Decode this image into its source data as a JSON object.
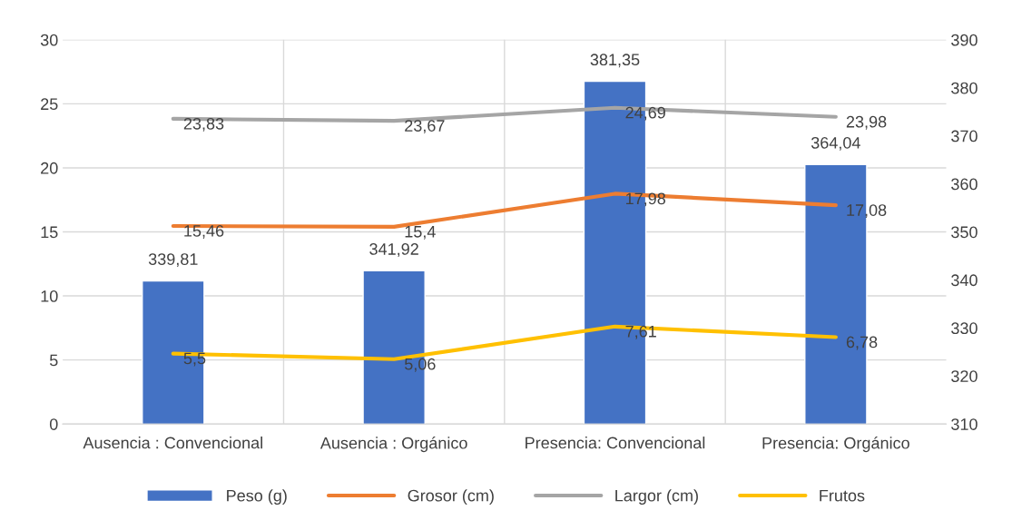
{
  "chart_data": {
    "type": "line",
    "categories": [
      "Ausencia : Convencional",
      "Ausencia : Orgánico",
      "Presencia: Convencional",
      "Presencia: Orgánico"
    ],
    "series": [
      {
        "name": "Peso (g)",
        "type": "bar",
        "axis": "y2",
        "color": "#4472c4",
        "values": [
          339.81,
          341.92,
          381.35,
          364.04
        ],
        "value_labels": [
          "339,81",
          "341,92",
          "381,35",
          "364,04"
        ]
      },
      {
        "name": "Grosor (cm)",
        "color": "#ed7d31",
        "values": [
          15.46,
          15.4,
          17.98,
          17.08
        ],
        "value_labels": [
          "15,46",
          "15,4",
          "17,98",
          "17,08"
        ]
      },
      {
        "name": "Largor (cm)",
        "color": "#a5a5a5",
        "values": [
          23.83,
          23.67,
          24.69,
          23.98
        ],
        "value_labels": [
          "23,83",
          "23,67",
          "24,69",
          "23,98"
        ]
      },
      {
        "name": "Frutos",
        "color": "#ffc000",
        "values": [
          5.5,
          5.06,
          7.61,
          6.78
        ],
        "value_labels": [
          "5,5",
          "5,06",
          "7,61",
          "6,78"
        ]
      }
    ],
    "ylim": [
      0,
      30
    ],
    "yticks": [
      0,
      5,
      10,
      15,
      20,
      25,
      30
    ],
    "y2lim": [
      310,
      390
    ],
    "y2ticks": [
      310,
      320,
      330,
      340,
      350,
      360,
      370,
      380,
      390
    ],
    "grid": true,
    "legend": "bottom",
    "marker": "none",
    "line_style": "solid"
  }
}
